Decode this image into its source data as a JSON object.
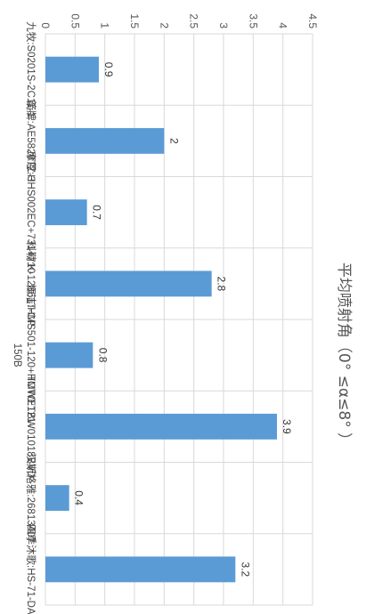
{
  "chart_data": {
    "type": "bar",
    "orientation": "vertical",
    "title": "平均喷射角（0° ≤α≤8° ）",
    "xlabel": "",
    "ylabel": "",
    "categories": [
      "九牧:S0201S-2C11-1",
      "箭牌:AE5826TZ-3",
      "摩恩:HHS002EC+731+710",
      "科勒:K-12861T-CP",
      "恒洁:HMS501-120+HMWE121-150B",
      "TOTO:TBW01018BVD",
      "汉斯格雅:26813407",
      "四季沐歌:HS-71-DA"
    ],
    "series": [
      {
        "values": [
          0.9,
          2,
          0.7,
          2.8,
          0.8,
          3.9,
          0.4,
          3.2
        ]
      }
    ],
    "ylim": [
      0,
      4.5
    ],
    "yticks": [
      "0",
      "0.5",
      "1",
      "1.5",
      "2",
      "2.5",
      "3",
      "3.5",
      "4",
      "4.5"
    ],
    "grid": true,
    "legend": "none",
    "data_labels": true,
    "bar_color": "#5b9bd5",
    "grid_color": "#d9d9d9",
    "text_color": "#555555"
  }
}
